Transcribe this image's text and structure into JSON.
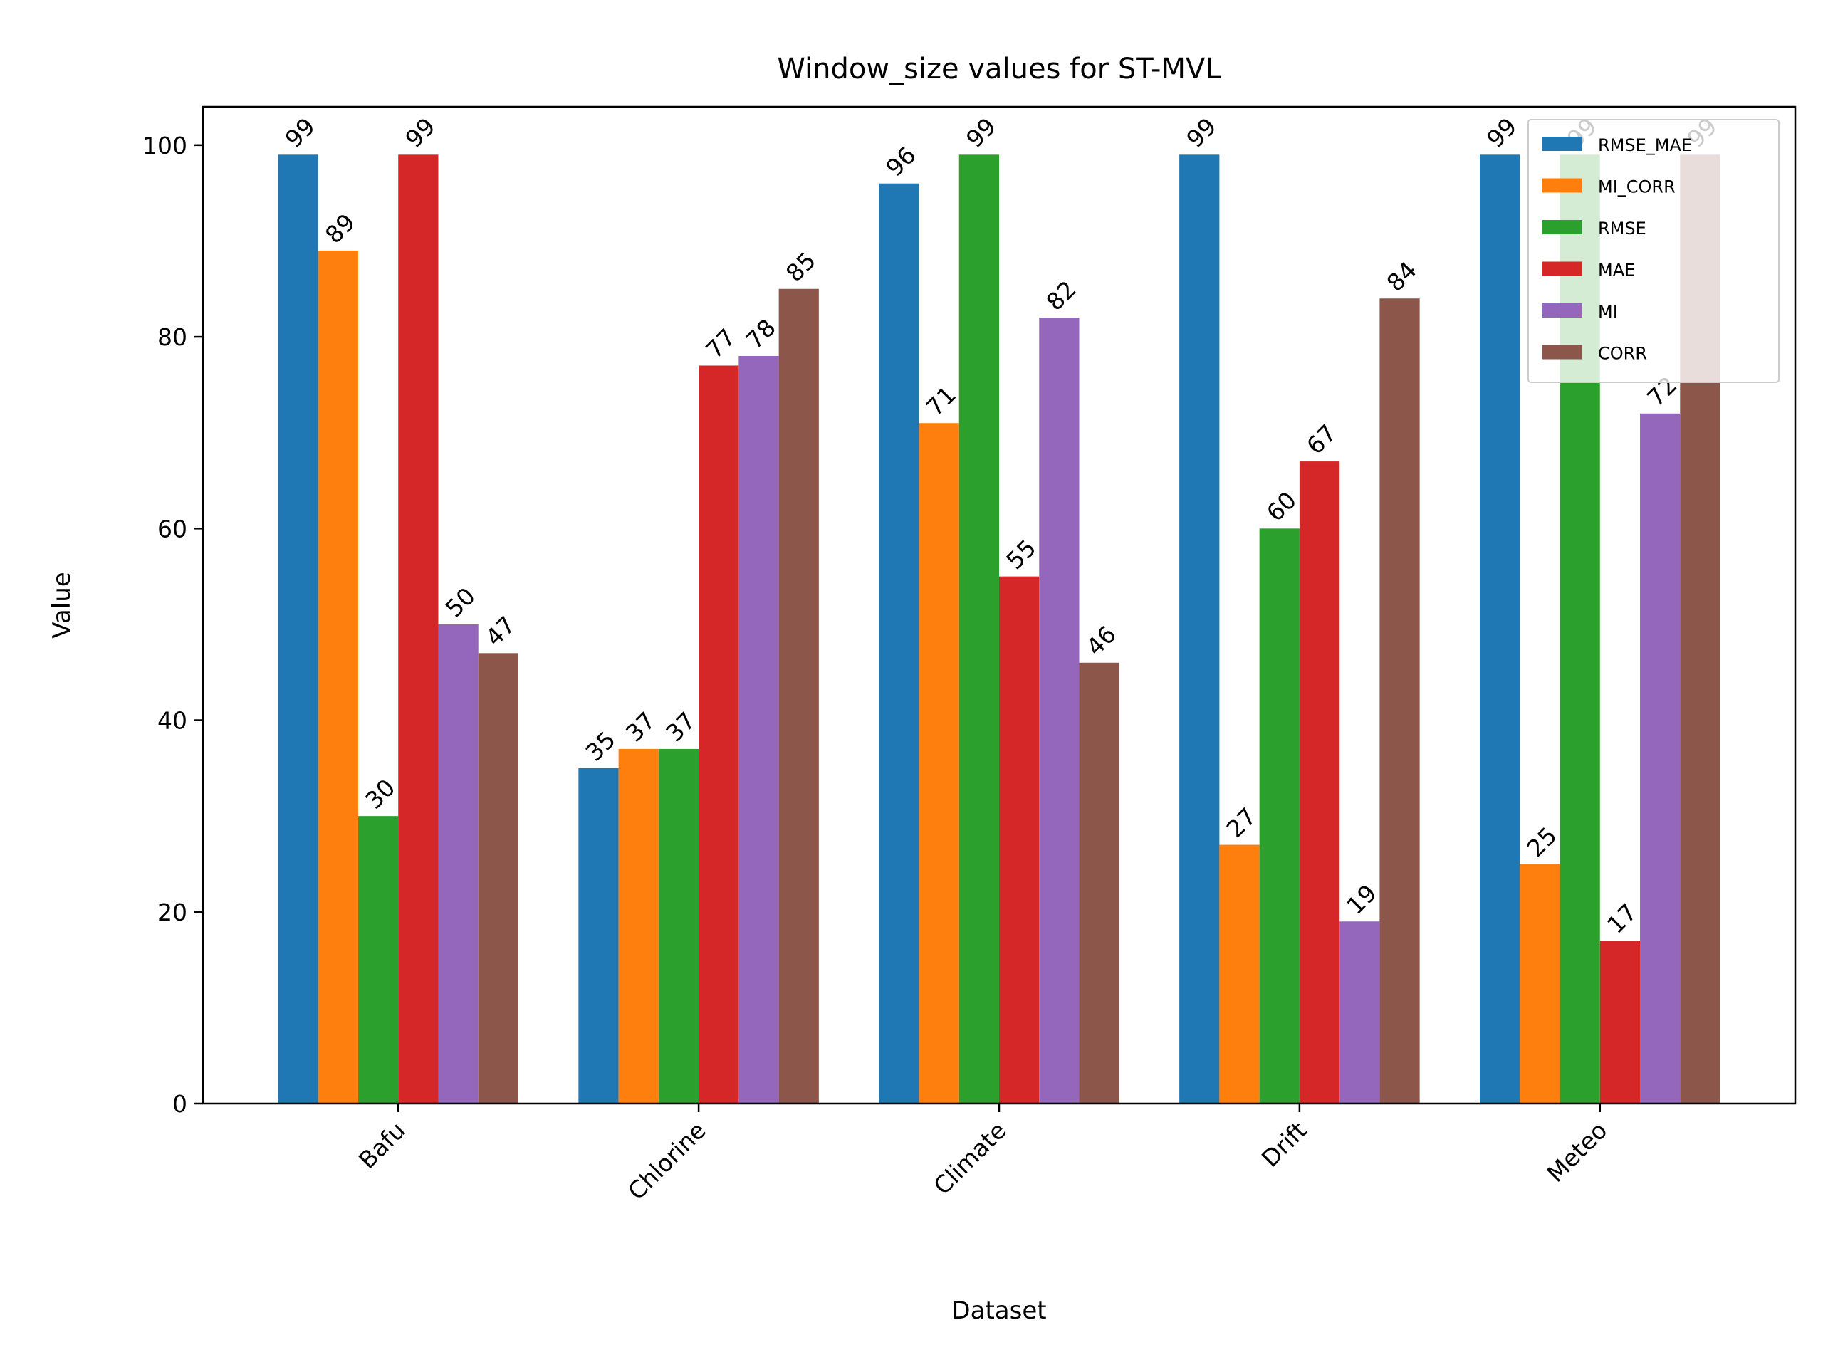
{
  "chart_data": {
    "type": "bar",
    "title": "Window_size values for ST-MVL",
    "xlabel": "Dataset",
    "ylabel": "Value",
    "categories": [
      "Bafu",
      "Chlorine",
      "Climate",
      "Drift",
      "Meteo"
    ],
    "ylim": [
      0,
      104
    ],
    "yticks": [
      0,
      20,
      40,
      60,
      80,
      100
    ],
    "legend_position": "top-right",
    "series": [
      {
        "name": "RMSE_MAE",
        "color": "#1f77b4",
        "values": [
          99,
          35,
          96,
          99,
          99
        ]
      },
      {
        "name": "MI_CORR",
        "color": "#ff7f0e",
        "values": [
          89,
          37,
          71,
          27,
          25
        ]
      },
      {
        "name": "RMSE",
        "color": "#2ca02c",
        "values": [
          30,
          37,
          99,
          60,
          99
        ]
      },
      {
        "name": "MAE",
        "color": "#d62728",
        "values": [
          99,
          77,
          55,
          67,
          17
        ]
      },
      {
        "name": "MI",
        "color": "#9467bd",
        "values": [
          50,
          78,
          82,
          19,
          72
        ]
      },
      {
        "name": "CORR",
        "color": "#8c564b",
        "values": [
          47,
          85,
          46,
          84,
          99
        ]
      }
    ]
  }
}
